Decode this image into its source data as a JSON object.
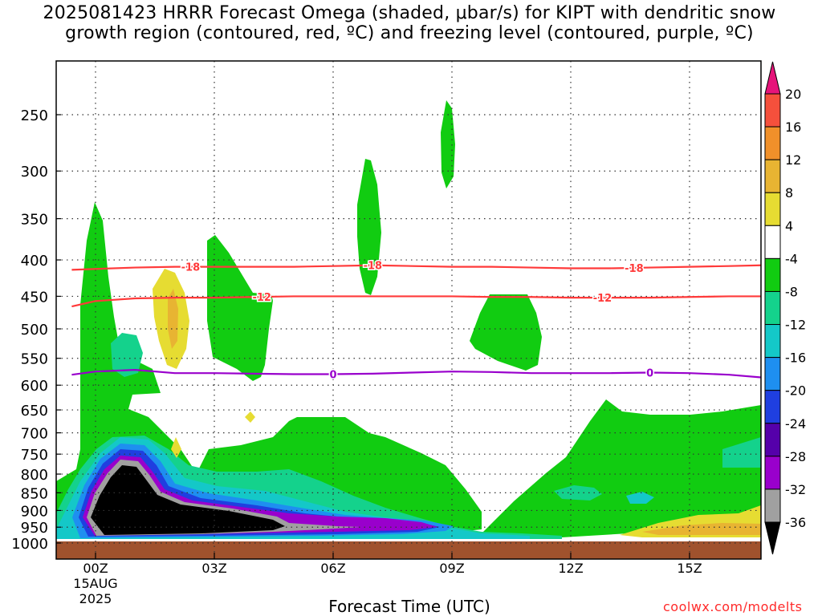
{
  "title_lines": [
    "2025081423 HRRR Forecast Omega (shaded, μbar/s) for KIPT with dendritic snow",
    "growth region (contoured, red, ºC) and freezing level (contoured, purple, ºC)"
  ],
  "credit": "coolwx.com/modelts",
  "chart_data": {
    "type": "heatmap",
    "title": "2025081423 HRRR Forecast Omega (shaded, μbar/s) for KIPT with dendritic snow growth region (contoured, red, ºC) and freezing level (contoured, purple, ºC)",
    "xlabel": "Forecast Time (UTC)",
    "ylabel": "",
    "x_ticks": [
      {
        "hour": 0,
        "label": "00Z"
      },
      {
        "hour": 3,
        "label": "03Z"
      },
      {
        "hour": 6,
        "label": "06Z"
      },
      {
        "hour": 9,
        "label": "09Z"
      },
      {
        "hour": 12,
        "label": "12Z"
      },
      {
        "hour": 15,
        "label": "15Z"
      }
    ],
    "x_date_label": [
      "15AUG",
      "2025"
    ],
    "xlim_hours": [
      -0.6,
      17
    ],
    "y_ticks_hpa": [
      250,
      300,
      350,
      400,
      450,
      500,
      550,
      600,
      650,
      700,
      750,
      800,
      850,
      900,
      950,
      1000
    ],
    "grid": true,
    "colorbar": {
      "ticks": [
        20,
        16,
        12,
        8,
        4,
        -4,
        -8,
        -12,
        -16,
        -20,
        -24,
        -28,
        -32,
        -36
      ],
      "colors": [
        "#000000",
        "#a0a0a0",
        "#9900cc",
        "#5500aa",
        "#1f3fe0",
        "#1e8ff0",
        "#14c8c8",
        "#14d28c",
        "#11cc11",
        "#ffffff",
        "#e6dc32",
        "#e8b432",
        "#f0902a",
        "#f5503c",
        "#e6147a"
      ]
    },
    "contours": [
      {
        "value": -18,
        "label": "-18",
        "color": "#ff3a3a",
        "points": [
          [
            -0.6,
            413
          ],
          [
            1,
            410
          ],
          [
            2,
            409
          ],
          [
            3,
            409
          ],
          [
            4,
            409
          ],
          [
            5,
            409
          ],
          [
            6,
            408
          ],
          [
            7,
            407
          ],
          [
            8,
            408
          ],
          [
            9,
            409
          ],
          [
            10,
            409
          ],
          [
            11,
            410
          ],
          [
            12,
            411
          ],
          [
            13,
            411
          ],
          [
            14,
            410
          ],
          [
            15,
            409
          ],
          [
            16,
            408
          ],
          [
            17,
            407
          ]
        ]
      },
      {
        "value": -12,
        "label": "-12",
        "color": "#ff3a3a",
        "points": [
          [
            -0.6,
            465
          ],
          [
            0,
            457
          ],
          [
            1,
            453
          ],
          [
            2,
            452
          ],
          [
            3,
            452
          ],
          [
            4,
            451
          ],
          [
            5,
            450
          ],
          [
            6,
            450
          ],
          [
            7,
            450
          ],
          [
            8,
            450
          ],
          [
            9,
            450
          ],
          [
            10,
            451
          ],
          [
            11,
            451
          ],
          [
            12,
            452
          ],
          [
            13,
            452
          ],
          [
            14,
            452
          ],
          [
            15,
            451
          ],
          [
            16,
            450
          ],
          [
            17,
            450
          ]
        ]
      },
      {
        "value": 0,
        "label": "0",
        "color": "#9900cc",
        "points": [
          [
            -0.6,
            580
          ],
          [
            0,
            574
          ],
          [
            1,
            571
          ],
          [
            2,
            577
          ],
          [
            3,
            577
          ],
          [
            4,
            578
          ],
          [
            5,
            579
          ],
          [
            6,
            579
          ],
          [
            7,
            578
          ],
          [
            8,
            576
          ],
          [
            9,
            574
          ],
          [
            10,
            575
          ],
          [
            11,
            577
          ],
          [
            12,
            577
          ],
          [
            13,
            577
          ],
          [
            14,
            576
          ],
          [
            15,
            577
          ],
          [
            16,
            580
          ],
          [
            17,
            585
          ]
        ]
      }
    ]
  }
}
